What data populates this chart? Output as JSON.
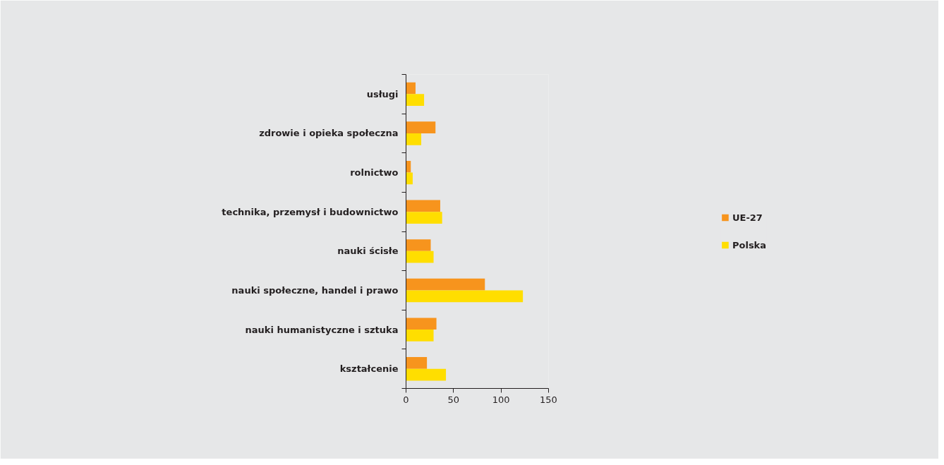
{
  "chart_data": {
    "type": "bar",
    "orientation": "horizontal",
    "categories": [
      "usługi",
      "zdrowie i opieka społeczna",
      "rolnictwo",
      "technika, przemysł i budownictwo",
      "nauki ścisłe",
      "nauki społeczne, handel i prawo",
      "nauki humanistyczne i sztuka",
      "kształcenie"
    ],
    "series": [
      {
        "name": "UE-27",
        "color": "#f7941d",
        "values": [
          10,
          31,
          5,
          36,
          26,
          83,
          32,
          22
        ]
      },
      {
        "name": "Polska",
        "color": "#ffde00",
        "values": [
          19,
          16,
          7,
          38,
          29,
          123,
          29,
          42
        ]
      }
    ],
    "xlim": [
      0,
      150
    ],
    "xticks": [
      0,
      50,
      100,
      150
    ],
    "legend": "right"
  }
}
